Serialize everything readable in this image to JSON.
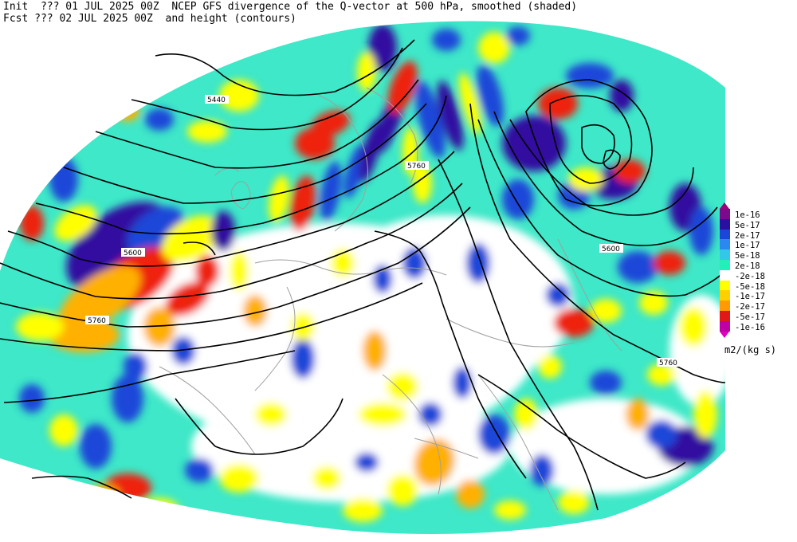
{
  "header": {
    "line1": "Init  ??? 01 JUL 2025 00Z  NCEP GFS divergence of the Q-vector at 500 hPa, smoothed (shaded)",
    "line2": "Fcst ??? 02 JUL 2025 00Z  and height (contours)"
  },
  "contour_labels": [
    "5440",
    "5600",
    "5760",
    "5760",
    "5600",
    "5760"
  ],
  "legend": {
    "levels": [
      "1e-16",
      "5e-17",
      "2e-17",
      "1e-17",
      "5e-18",
      "2e-18",
      "-2e-18",
      "-5e-18",
      "-1e-17",
      "-2e-17",
      "-5e-17",
      "-1e-16"
    ],
    "colors": [
      "#7a0c8c",
      "#2a10a0",
      "#1c46d8",
      "#2a88ee",
      "#32c8e8",
      "#22f0b8",
      "#ffffff",
      "#ffff00",
      "#ffd000",
      "#ff9a00",
      "#e01818",
      "#c000a0"
    ],
    "units": "m2/(kg s)"
  }
}
